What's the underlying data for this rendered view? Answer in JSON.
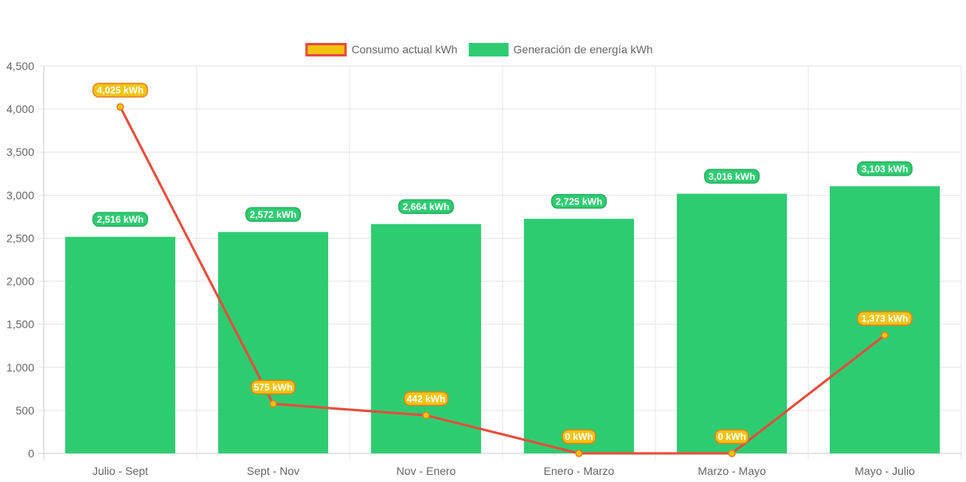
{
  "chart_data": {
    "type": "bar",
    "title": "",
    "xlabel": "",
    "ylabel": "",
    "ylim": [
      0,
      4500
    ],
    "ytick_step": 500,
    "grid": true,
    "legend_position": "top",
    "categories": [
      "Julio - Sept",
      "Sept - Nov",
      "Nov - Enero",
      "Enero - Marzo",
      "Marzo - Mayo",
      "Mayo - Julio"
    ],
    "series": [
      {
        "name": "Consumo actual kWh",
        "type": "line",
        "values": [
          4025,
          575,
          442,
          0,
          0,
          1373
        ],
        "labels": [
          "4,025 kWh",
          "575 kWh",
          "442 kWh",
          "0 kWh",
          "0 kWh",
          "1,373 kWh"
        ],
        "color": "#e74c3c",
        "fill_color": "#f1c40f",
        "label_bg": "#f1c40f",
        "label_border": "#e67e22"
      },
      {
        "name": "Generación de energía kWh",
        "type": "bar",
        "values": [
          2516,
          2572,
          2664,
          2725,
          3016,
          3103
        ],
        "labels": [
          "2,516 kWh",
          "2,572 kWh",
          "2,664 kWh",
          "2,725 kWh",
          "3,016 kWh",
          "3,103 kWh"
        ],
        "color": "#2ecc71",
        "label_bg": "#2ecc71",
        "label_border": "#27ae60"
      }
    ]
  }
}
